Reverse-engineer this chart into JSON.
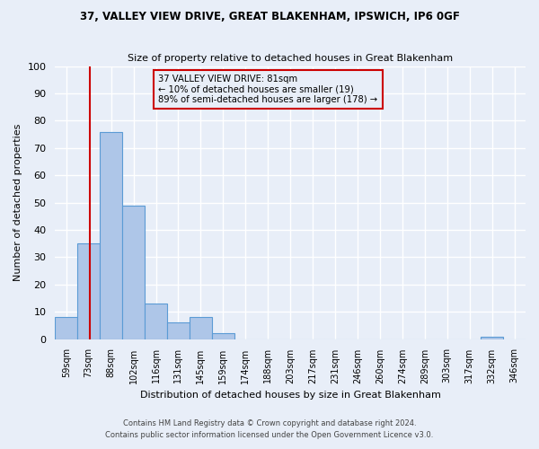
{
  "title_line1": "37, VALLEY VIEW DRIVE, GREAT BLAKENHAM, IPSWICH, IP6 0GF",
  "title_line2": "Size of property relative to detached houses in Great Blakenham",
  "xlabel": "Distribution of detached houses by size in Great Blakenham",
  "ylabel": "Number of detached properties",
  "bin_labels": [
    "59sqm",
    "73sqm",
    "88sqm",
    "102sqm",
    "116sqm",
    "131sqm",
    "145sqm",
    "159sqm",
    "174sqm",
    "188sqm",
    "203sqm",
    "217sqm",
    "231sqm",
    "246sqm",
    "260sqm",
    "274sqm",
    "289sqm",
    "303sqm",
    "317sqm",
    "332sqm",
    "346sqm"
  ],
  "bar_heights": [
    8,
    35,
    76,
    49,
    13,
    6,
    8,
    2,
    0,
    0,
    0,
    0,
    0,
    0,
    0,
    0,
    0,
    0,
    0,
    1,
    0
  ],
  "bar_color": "#aec6e8",
  "bar_edge_color": "#5b9bd5",
  "annotation_text_line1": "37 VALLEY VIEW DRIVE: 81sqm",
  "annotation_text_line2": "← 10% of detached houses are smaller (19)",
  "annotation_text_line3": "89% of semi-detached houses are larger (178) →",
  "ylim": [
    0,
    100
  ],
  "yticks": [
    0,
    10,
    20,
    30,
    40,
    50,
    60,
    70,
    80,
    90,
    100
  ],
  "red_line_color": "#cc0000",
  "annotation_box_edge_color": "#cc0000",
  "footer_line1": "Contains HM Land Registry data © Crown copyright and database right 2024.",
  "footer_line2": "Contains public sector information licensed under the Open Government Licence v3.0.",
  "background_color": "#e8eef8"
}
